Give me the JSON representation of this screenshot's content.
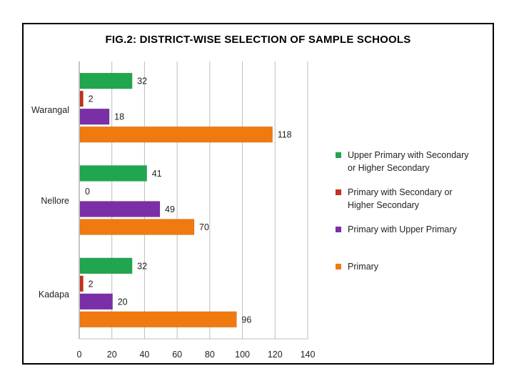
{
  "chart_data": {
    "type": "bar",
    "orientation": "horizontal",
    "title": "FIG.2: DISTRICT-WISE SELECTION OF SAMPLE SCHOOLS",
    "categories": [
      "Warangal",
      "Nellore",
      "Kadapa"
    ],
    "series": [
      {
        "name": "Upper Primary with Secondary or Higher Secondary",
        "legend_lines": "Upper Primary with Secondary\nor Higher Secondary",
        "color": "#1fa64e",
        "values": [
          32,
          41,
          32
        ]
      },
      {
        "name": "Primary with Secondary or Higher Secondary",
        "legend_lines": "Primary with Secondary or\nHigher Secondary",
        "color": "#c0321a",
        "values": [
          2,
          0,
          2
        ]
      },
      {
        "name": "Primary with Upper Primary",
        "legend_lines": "Primary with Upper Primary",
        "color": "#7b2fa6",
        "values": [
          18,
          49,
          20
        ]
      },
      {
        "name": "Primary",
        "legend_lines": "Primary",
        "color": "#f07a10",
        "values": [
          118,
          70,
          96
        ]
      }
    ],
    "xlim": [
      0,
      140
    ],
    "xticks": [
      "0",
      "20",
      "40",
      "60",
      "80",
      "100",
      "120",
      "140"
    ],
    "grid": true,
    "legend_position": "right",
    "xlabel": "",
    "ylabel": ""
  }
}
